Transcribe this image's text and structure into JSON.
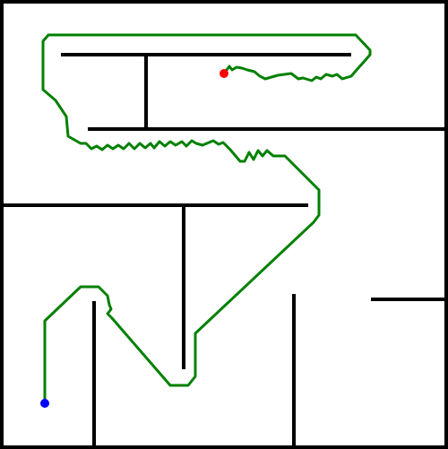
{
  "game": {
    "type": "maze-path",
    "colors": {
      "background": "#ffffff",
      "walls": "#000000",
      "path": "#008000",
      "start": "#0000ff",
      "goal": "#ff0000"
    },
    "markers": {
      "start": {
        "label": "",
        "color": "#0000ff"
      },
      "goal": {
        "label": "",
        "color": "#ff0000"
      }
    }
  }
}
